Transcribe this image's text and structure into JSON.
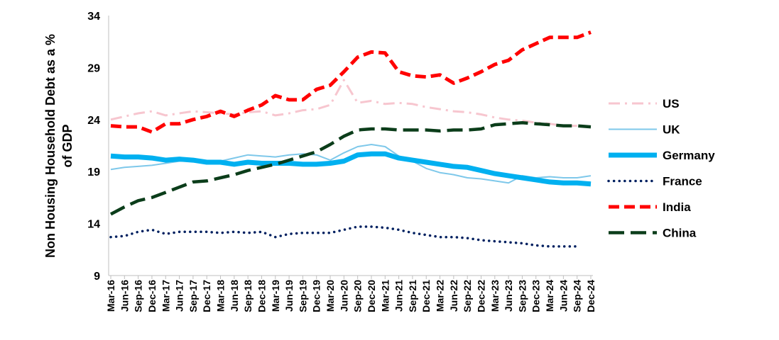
{
  "chart_data": {
    "type": "line",
    "title": "",
    "xlabel": "",
    "ylabel": "Non Housing Household Debt as a % of GDP",
    "ylabel_lines": [
      "Non Housing Household Debt as a %",
      "of GDP"
    ],
    "ylim": [
      9,
      34
    ],
    "yticks": [
      9,
      14,
      19,
      24,
      29,
      34
    ],
    "grid": false,
    "legend_position": "right",
    "categories": [
      "Mar-16",
      "Jun-16",
      "Sep-16",
      "Dec-16",
      "Mar-17",
      "Jun-17",
      "Sep-17",
      "Dec-17",
      "Mar-18",
      "Jun-18",
      "Sep-18",
      "Dec-18",
      "Mar-19",
      "Jun-19",
      "Sep-19",
      "Dec-19",
      "Mar-20",
      "Jun-20",
      "Sep-20",
      "Dec-20",
      "Mar-21",
      "Jun-21",
      "Sep-21",
      "Dec-21",
      "Mar-22",
      "Jun-22",
      "Sep-22",
      "Dec-22",
      "Mar-23",
      "Jun-23",
      "Sep-23",
      "Dec-23",
      "Mar-24",
      "Jun-24",
      "Sep-24",
      "Dec-24"
    ],
    "series": [
      {
        "name": "US",
        "color": "#f7c6cf",
        "style": "dashdot",
        "width": 3,
        "values": [
          24.0,
          24.3,
          24.6,
          24.8,
          24.4,
          24.6,
          24.8,
          24.7,
          24.6,
          24.5,
          24.7,
          24.8,
          24.4,
          24.6,
          24.9,
          25.0,
          25.4,
          27.8,
          25.6,
          25.8,
          25.5,
          25.6,
          25.5,
          25.2,
          25.0,
          24.8,
          24.7,
          24.5,
          24.2,
          24.0,
          23.9,
          23.7,
          23.6,
          23.4,
          23.4,
          null
        ]
      },
      {
        "name": "UK",
        "color": "#7ec8ea",
        "style": "solid",
        "width": 2,
        "values": [
          19.2,
          19.4,
          19.5,
          19.6,
          19.8,
          20.0,
          20.0,
          20.0,
          20.0,
          20.3,
          20.6,
          20.5,
          20.4,
          20.6,
          20.7,
          20.6,
          20.1,
          20.8,
          21.4,
          21.6,
          21.4,
          20.5,
          20.0,
          19.3,
          18.9,
          18.7,
          18.4,
          18.3,
          18.1,
          17.9,
          18.6,
          18.4,
          18.5,
          18.4,
          18.4,
          18.6
        ]
      },
      {
        "name": "Germany",
        "color": "#00b0f0",
        "style": "solid",
        "width": 7,
        "values": [
          20.5,
          20.4,
          20.4,
          20.3,
          20.1,
          20.2,
          20.1,
          19.9,
          19.9,
          19.7,
          19.9,
          19.8,
          19.8,
          19.8,
          19.7,
          19.7,
          19.8,
          20.0,
          20.6,
          20.7,
          20.7,
          20.3,
          20.1,
          19.9,
          19.7,
          19.5,
          19.4,
          19.1,
          18.8,
          18.6,
          18.4,
          18.2,
          18.0,
          17.9,
          17.9,
          17.8
        ]
      },
      {
        "name": "France",
        "color": "#002060",
        "style": "dotted",
        "width": 3.5,
        "values": [
          12.7,
          12.8,
          13.2,
          13.4,
          13.0,
          13.2,
          13.2,
          13.2,
          13.1,
          13.2,
          13.1,
          13.2,
          12.7,
          13.0,
          13.1,
          13.1,
          13.1,
          13.4,
          13.7,
          13.7,
          13.6,
          13.4,
          13.1,
          12.9,
          12.7,
          12.7,
          12.6,
          12.4,
          12.3,
          12.2,
          12.1,
          11.9,
          11.8,
          11.8,
          11.8,
          null
        ]
      },
      {
        "name": "India",
        "color": "#ff0000",
        "style": "dashed",
        "width": 5,
        "values": [
          23.4,
          23.3,
          23.3,
          22.8,
          23.6,
          23.6,
          24.0,
          24.3,
          24.8,
          24.3,
          24.9,
          25.4,
          26.3,
          25.9,
          25.9,
          26.9,
          27.3,
          28.6,
          30.0,
          30.5,
          30.4,
          28.6,
          28.2,
          28.1,
          28.3,
          27.5,
          28.0,
          28.6,
          29.3,
          29.7,
          30.7,
          31.3,
          31.9,
          31.9,
          31.9,
          32.4
        ]
      },
      {
        "name": "China",
        "color": "#0b3d1a",
        "style": "longdash",
        "width": 4.5,
        "values": [
          14.9,
          15.6,
          16.2,
          16.5,
          17.0,
          17.5,
          18.0,
          18.1,
          18.4,
          18.7,
          19.1,
          19.4,
          19.7,
          20.1,
          20.5,
          20.9,
          21.6,
          22.4,
          23.0,
          23.1,
          23.1,
          23.0,
          23.0,
          23.0,
          22.9,
          23.0,
          23.0,
          23.1,
          23.5,
          23.6,
          23.7,
          23.6,
          23.5,
          23.4,
          23.4,
          23.3
        ]
      }
    ]
  }
}
